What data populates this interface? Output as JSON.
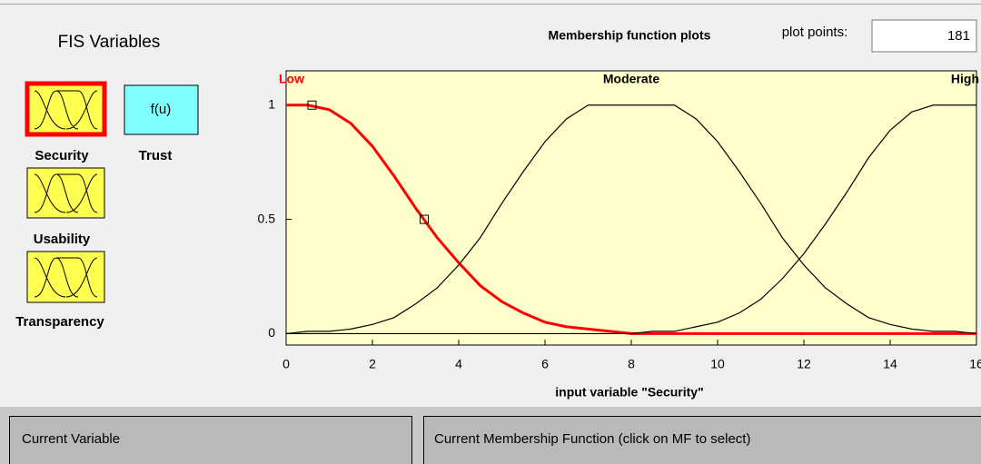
{
  "fis_variables": {
    "title": "FIS Variables",
    "inputs": [
      "Security",
      "Usability",
      "Transparency"
    ],
    "output": {
      "name": "Trust",
      "icon_label": "f(u)"
    }
  },
  "plot_points": {
    "label": "plot points:",
    "value": "181"
  },
  "current_variable": {
    "label": "Current Variable"
  },
  "current_mf": {
    "label": "Current Membership Function (click on MF to select)"
  },
  "chart_data": {
    "type": "line",
    "title": "Membership function plots",
    "x_label": "input variable \"Security\"",
    "x": [
      0,
      0.5,
      1,
      1.5,
      2,
      2.5,
      3,
      3.5,
      4,
      4.5,
      5,
      5.5,
      6,
      6.5,
      7,
      7.5,
      8,
      8.5,
      9,
      9.5,
      10,
      10.5,
      11,
      11.5,
      12,
      12.5,
      13,
      13.5,
      14,
      14.5,
      15,
      15.5,
      16
    ],
    "series": [
      {
        "name": "Low",
        "color": "#ff0000",
        "values": [
          1,
          1,
          0.98,
          0.92,
          0.82,
          0.69,
          0.55,
          0.42,
          0.31,
          0.21,
          0.14,
          0.09,
          0.05,
          0.03,
          0.02,
          0.01,
          0,
          0,
          0,
          0,
          0,
          0,
          0,
          0,
          0,
          0,
          0,
          0,
          0,
          0,
          0,
          0,
          0
        ]
      },
      {
        "name": "Moderate",
        "color": "#000000",
        "values": [
          0,
          0.01,
          0.01,
          0.02,
          0.04,
          0.07,
          0.13,
          0.2,
          0.3,
          0.42,
          0.57,
          0.71,
          0.84,
          0.94,
          1,
          1,
          1,
          1,
          1,
          0.94,
          0.84,
          0.71,
          0.57,
          0.42,
          0.3,
          0.2,
          0.13,
          0.07,
          0.04,
          0.02,
          0.01,
          0.01,
          0
        ]
      },
      {
        "name": "High",
        "color": "#000000",
        "values": [
          0,
          0,
          0,
          0,
          0,
          0,
          0,
          0,
          0,
          0,
          0,
          0,
          0,
          0,
          0,
          0,
          0,
          0.01,
          0.01,
          0.03,
          0.05,
          0.09,
          0.15,
          0.24,
          0.35,
          0.48,
          0.62,
          0.77,
          0.89,
          0.97,
          1,
          1,
          1
        ]
      }
    ],
    "selected_series": "Low",
    "handles": {
      "x": [
        0.6,
        3.2
      ],
      "values": [
        1,
        0.5
      ]
    },
    "xlim": [
      0,
      16
    ],
    "xticks": [
      0,
      2,
      4,
      6,
      8,
      10,
      12,
      14,
      16
    ],
    "ylim": [
      -0.05,
      1.15
    ],
    "yticks": [
      0,
      0.5,
      1
    ],
    "background": "#ffffcc"
  }
}
